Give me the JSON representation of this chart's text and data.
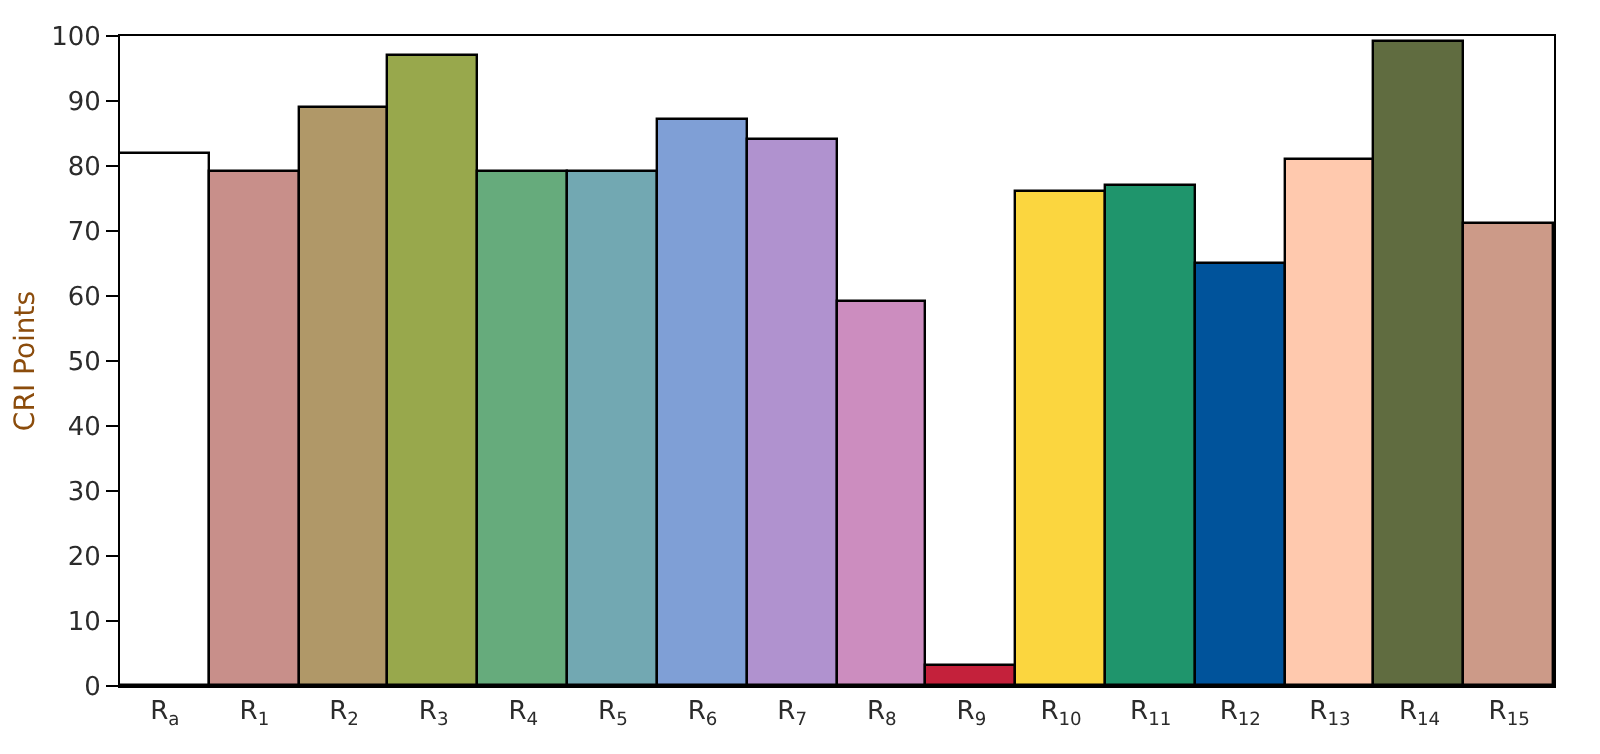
{
  "chart_data": {
    "type": "bar",
    "ylabel": "CRI Points",
    "categories": [
      "R$_{a}$",
      "R$_{1}$",
      "R$_{2}$",
      "R$_{3}$",
      "R$_{4}$",
      "R$_{5}$",
      "R$_{6}$",
      "R$_{7}$",
      "R$_{8}$",
      "R$_{9}$",
      "R$_{10}$",
      "R$_{11}$",
      "R$_{12}$",
      "R$_{13}$",
      "R$_{14}$",
      "R$_{15}$"
    ],
    "values": [
      82,
      79,
      89,
      97,
      79,
      79,
      87,
      84,
      59,
      3,
      76,
      77,
      65,
      81,
      99,
      71
    ],
    "colors": [
      "#ffffff",
      "#c88f8a",
      "#b09868",
      "#98a84c",
      "#66ab7c",
      "#72a8b2",
      "#7f9fd6",
      "#b092cf",
      "#cc8dbf",
      "#c4213b",
      "#fbd63f",
      "#1f956c",
      "#00539b",
      "#ffc9ae",
      "#606c40",
      "#cc9a88"
    ],
    "ylim": [
      0,
      100
    ],
    "yticks": [
      0,
      10,
      20,
      30,
      40,
      50,
      60,
      70,
      80,
      90,
      100
    ]
  }
}
